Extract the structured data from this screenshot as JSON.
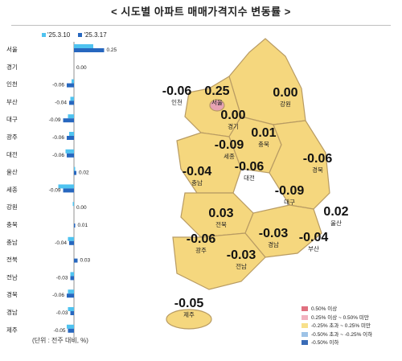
{
  "title": "< 시도별 아파트 매매가격지수 변동률 >",
  "unit_note": "(단위 : 전주 대비, %)",
  "colors": {
    "prev": "#4fc3f0",
    "curr": "#2767bf",
    "map_fill": "#f5d77e",
    "map_border": "#b89b63",
    "seoul_fill": "#e7a3b4"
  },
  "map_legend": [
    {
      "label": "0.50% 이상",
      "color": "#e0707f"
    },
    {
      "label": "0.25% 이상 ~ 0.50% 미만",
      "color": "#f2b2bf"
    },
    {
      "label": "-0.25% 초과 ~ 0.25% 미만",
      "color": "#f7e08a"
    },
    {
      "label": "-0.50% 초과 ~ -0.25% 이하",
      "color": "#9ec3e6"
    },
    {
      "label": "-0.50% 이하",
      "color": "#3a6cb7"
    }
  ],
  "chart_data": {
    "type": "bar",
    "orientation": "horizontal",
    "categories": [
      "서울",
      "경기",
      "인천",
      "부산",
      "대구",
      "광주",
      "대전",
      "울산",
      "세종",
      "강원",
      "충북",
      "충남",
      "전북",
      "전남",
      "경북",
      "경남",
      "제주"
    ],
    "series": [
      {
        "name": "'25.3.10",
        "values": [
          0.16,
          0.0,
          -0.02,
          -0.03,
          -0.05,
          -0.04,
          -0.07,
          0.01,
          -0.13,
          -0.01,
          0.0,
          -0.05,
          0.0,
          -0.03,
          -0.05,
          -0.05,
          -0.06
        ]
      },
      {
        "name": "'25.3.17",
        "values": [
          0.25,
          0.0,
          -0.06,
          -0.04,
          -0.09,
          -0.06,
          -0.06,
          0.02,
          -0.09,
          0.0,
          0.01,
          -0.04,
          0.03,
          -0.03,
          -0.06,
          -0.03,
          -0.05
        ]
      }
    ],
    "value_labels": [
      "0.25",
      "0.00",
      "-0.06",
      "-0.04",
      "-0.09",
      "-0.06",
      "-0.06",
      "0.02",
      "-0.09",
      "0.00",
      "0.01",
      "-0.04",
      "0.03",
      "-0.03",
      "-0.06",
      "-0.03",
      "-0.05"
    ],
    "xlim": [
      -0.15,
      0.3
    ]
  },
  "map_labels": [
    {
      "region": "인천",
      "value": "-0.06"
    },
    {
      "region": "서울",
      "value": "0.25"
    },
    {
      "region": "경기",
      "value": "0.00"
    },
    {
      "region": "강원",
      "value": "0.00"
    },
    {
      "region": "충북",
      "value": "0.01"
    },
    {
      "region": "세종",
      "value": "-0.09"
    },
    {
      "region": "충남",
      "value": "-0.04"
    },
    {
      "region": "대전",
      "value": "-0.06"
    },
    {
      "region": "경북",
      "value": "-0.06"
    },
    {
      "region": "대구",
      "value": "-0.09"
    },
    {
      "region": "전북",
      "value": "0.03"
    },
    {
      "region": "울산",
      "value": "0.02"
    },
    {
      "region": "광주",
      "value": "-0.06"
    },
    {
      "region": "전남",
      "value": "-0.03"
    },
    {
      "region": "경남",
      "value": "-0.03"
    },
    {
      "region": "부산",
      "value": "-0.04"
    },
    {
      "region": "제주",
      "value": "-0.05"
    }
  ]
}
